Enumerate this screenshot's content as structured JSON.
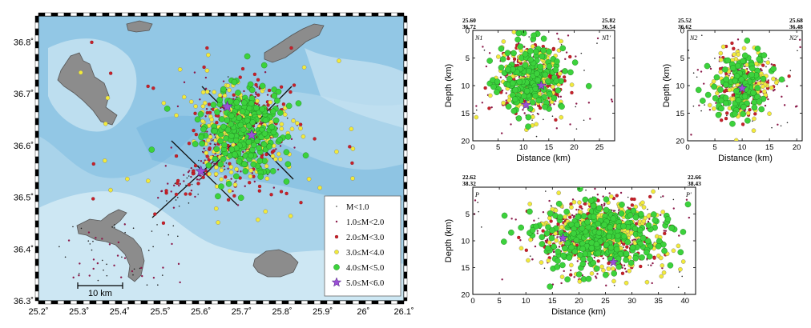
{
  "map": {
    "x_ticks": [
      "25.2˚",
      "25.3˚",
      "25.4˚",
      "25.5˚",
      "25.6˚",
      "25.7˚",
      "25.8˚",
      "25.9˚",
      "26˚",
      "26.1˚"
    ],
    "y_ticks": [
      "36.3˚",
      "36.4˚",
      "36.5˚",
      "36.6˚",
      "36.7˚",
      "36.8˚"
    ],
    "x_range": [
      25.2,
      26.1
    ],
    "y_range": [
      36.3,
      36.85
    ],
    "scale_bar": "10 km",
    "colors": {
      "sea_deep": "#5aa9d6",
      "sea_shallow": "#cfe6f2",
      "land": "#8c8c8c"
    },
    "legend": [
      {
        "label": "M<1.0",
        "symbol": "dot",
        "color": "#222222"
      },
      {
        "label": "1.0≤M<2.0",
        "symbol": "dot",
        "color": "#8b1a4a"
      },
      {
        "label": "2.0≤M<3.0",
        "symbol": "circle",
        "color": "#c8202a"
      },
      {
        "label": "3.0≤M<4.0",
        "symbol": "circle",
        "color": "#f2ea3a"
      },
      {
        "label": "4.0≤M<5.0",
        "symbol": "circle",
        "color": "#3cd23c"
      },
      {
        "label": "5.0≤M<6.0",
        "symbol": "star",
        "color": "#9b4fd6"
      }
    ]
  },
  "sections": [
    {
      "id": "N1",
      "start_label": "N1",
      "end_label": "N1'",
      "corner_left": [
        "25.60",
        "36.72"
      ],
      "corner_right": [
        "25.82",
        "36.54"
      ],
      "x_label": "Distance (km)",
      "y_label": "Depth (km)",
      "x_ticks": [
        "0",
        "5",
        "10",
        "15",
        "20",
        "25"
      ],
      "y_ticks": [
        "0",
        "5",
        "10",
        "15",
        "20"
      ],
      "x_range": [
        0,
        28
      ],
      "y_range": [
        0,
        20
      ]
    },
    {
      "id": "N2",
      "start_label": "N2",
      "end_label": "N2'",
      "corner_left": [
        "25.52",
        "36.62"
      ],
      "corner_right": [
        "25.68",
        "36.48"
      ],
      "x_label": "Distance (km)",
      "y_label": "Depth (km)",
      "x_ticks": [
        "0",
        "5",
        "10",
        "15",
        "20"
      ],
      "y_ticks": [
        "0",
        "5",
        "10",
        "15",
        "20"
      ],
      "x_range": [
        0,
        21
      ],
      "y_range": [
        0,
        20
      ]
    },
    {
      "id": "P",
      "start_label": "P",
      "end_label": "P'",
      "corner_left": [
        "22.62",
        "38.32"
      ],
      "corner_right": [
        "22.66",
        "38.43"
      ],
      "x_label": "Distance (km)",
      "y_label": "Depth (km)",
      "x_ticks": [
        "0",
        "5",
        "10",
        "15",
        "20",
        "25",
        "30",
        "35",
        "40"
      ],
      "y_ticks": [
        "5",
        "10",
        "15",
        "20"
      ],
      "x_range": [
        0,
        42
      ],
      "y_range": [
        0,
        20
      ]
    }
  ]
}
